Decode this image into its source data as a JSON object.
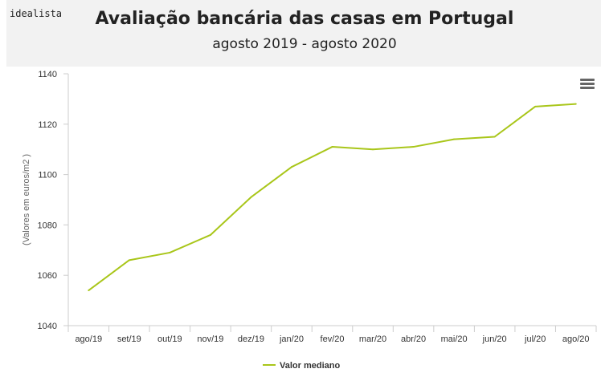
{
  "header": {
    "brand": "idealista",
    "title": "Avaliação bancária das casas em Portugal",
    "subtitle": "agosto 2019 - agosto 2020"
  },
  "toolbar": {
    "menu_icon": "hamburger-menu-icon"
  },
  "colors": {
    "series": "#a9c61a",
    "axis": "#cccccc",
    "header_bg": "#f2f2f2"
  },
  "chart_data": {
    "type": "line",
    "title": "Avaliação bancária das casas em Portugal",
    "subtitle": "agosto 2019 - agosto 2020",
    "xlabel": "",
    "ylabel": "(Valores em euros/m2 )",
    "categories": [
      "ago/19",
      "set/19",
      "out/19",
      "nov/19",
      "dez/19",
      "jan/20",
      "fev/20",
      "mar/20",
      "abr/20",
      "mai/20",
      "jun/20",
      "jul/20",
      "ago/20"
    ],
    "series": [
      {
        "name": "Valor mediano",
        "values": [
          1054,
          1066,
          1069,
          1076,
          1091,
          1103,
          1111,
          1110,
          1111,
          1114,
          1115,
          1127,
          1128
        ]
      }
    ],
    "ylim": [
      1040,
      1140
    ],
    "yticks": [
      1040,
      1060,
      1080,
      1100,
      1120,
      1140
    ],
    "grid": false,
    "legend": "bottom-center"
  }
}
